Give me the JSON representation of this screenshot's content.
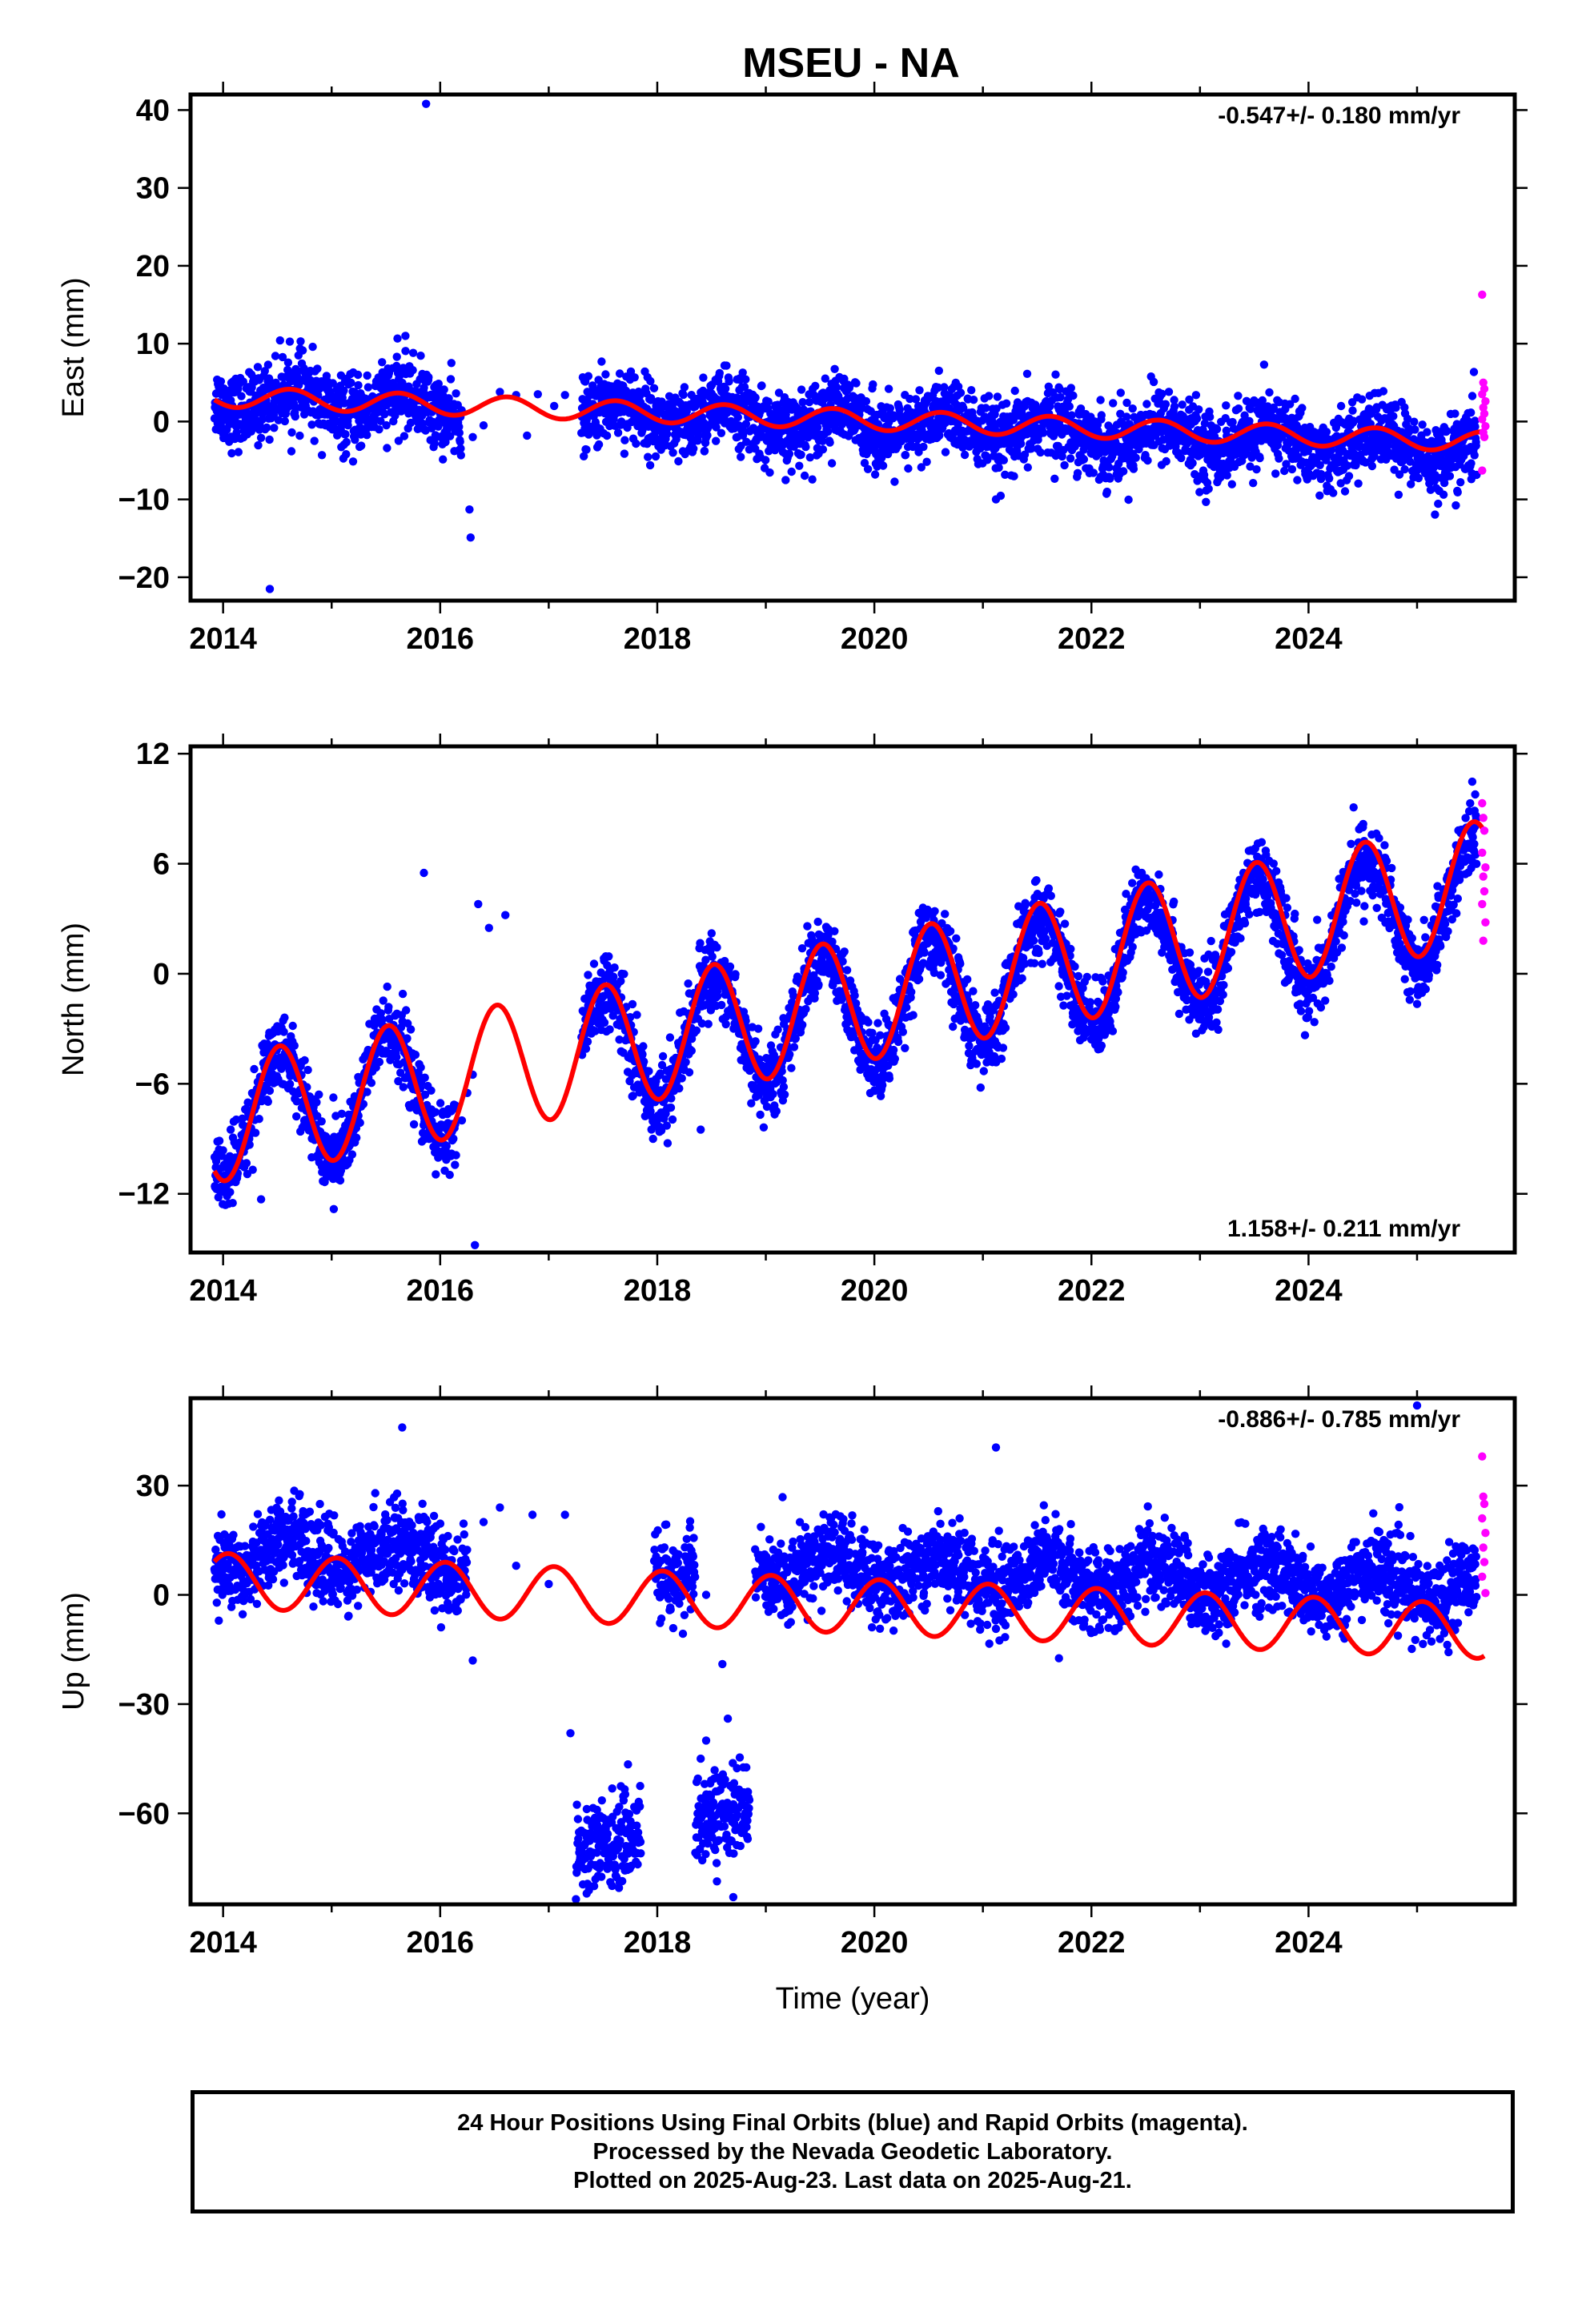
{
  "title": "MSEU - NA",
  "colors": {
    "final_orbits": "#0000ff",
    "rapid_orbits": "#ff00ff",
    "fit": "#ff0000",
    "frame": "#000000"
  },
  "chart_data": [
    {
      "type": "scatter",
      "ylabel": "East (mm)",
      "xlabel": "",
      "rate_label": "-0.547+/- 0.180 mm/yr",
      "rate_position": "top-right",
      "xlim": [
        2013.7,
        2025.9
      ],
      "ylim": [
        -23,
        42
      ],
      "xticks": [
        2014,
        2016,
        2018,
        2020,
        2022,
        2024
      ],
      "yticks": [
        40,
        30,
        20,
        10,
        0,
        -10,
        -20
      ],
      "ytick_labels": [
        "40",
        "30",
        "20",
        "10",
        "0",
        "−10",
        "−20"
      ],
      "series": [
        {
          "role": "final",
          "segments": [
            [
              2013.92,
              2016.2
            ],
            [
              2017.3,
              2025.55
            ]
          ],
          "trend": [
            [
              2013.92,
              3.0
            ],
            [
              2025.6,
              -3.5
            ]
          ],
          "annual_amp": 1.6,
          "annual_peak": 0.65,
          "scatter": 2.3,
          "sparse": [
            [
              2016.05,
              -1.5
            ],
            [
              2016.3,
              -2.0
            ],
            [
              2016.4,
              -0.5
            ],
            [
              2016.55,
              3.8
            ],
            [
              2016.7,
              3.4
            ],
            [
              2016.8,
              -1.8
            ],
            [
              2016.9,
              3.5
            ],
            [
              2017.05,
              2.0
            ],
            [
              2017.15,
              3.4
            ]
          ],
          "outliers": [
            [
              2015.87,
              40.8
            ],
            [
              2014.43,
              -21.5
            ],
            [
              2016.27,
              -11.3
            ],
            [
              2016.28,
              -14.9
            ],
            [
              2015.68,
              11.0
            ],
            [
              2021.12,
              -10.0
            ],
            [
              2024.83,
              -9.4
            ],
            [
              2025.4,
              -7.8
            ],
            [
              2025.5,
              -7.4
            ]
          ]
        },
        {
          "role": "rapid",
          "x_range": [
            2025.58,
            2025.64
          ],
          "points": [
            [
              2025.6,
              16.3
            ],
            [
              2025.61,
              5.0
            ],
            [
              2025.62,
              4.2
            ],
            [
              2025.6,
              3.5
            ],
            [
              2025.63,
              2.6
            ],
            [
              2025.61,
              1.8
            ],
            [
              2025.62,
              1.0
            ],
            [
              2025.6,
              0.3
            ],
            [
              2025.63,
              -0.6
            ],
            [
              2025.61,
              -1.4
            ],
            [
              2025.62,
              -2.0
            ],
            [
              2025.6,
              -6.3
            ]
          ]
        },
        {
          "role": "fit",
          "trend": [
            [
              2013.92,
              3.2
            ],
            [
              2025.62,
              -2.6
            ]
          ],
          "annual_amp": 1.3,
          "annual_peak": 0.62
        }
      ]
    },
    {
      "type": "scatter",
      "ylabel": "North (mm)",
      "xlabel": "",
      "rate_label": "1.158+/- 0.211 mm/yr",
      "rate_position": "bottom-right",
      "xlim": [
        2013.7,
        2025.9
      ],
      "ylim": [
        -15.2,
        12.4
      ],
      "xticks": [
        2014,
        2016,
        2018,
        2020,
        2022,
        2024
      ],
      "yticks": [
        12,
        6,
        0,
        -6,
        -12
      ],
      "ytick_labels": [
        "12",
        "6",
        "0",
        "−6",
        "−12"
      ],
      "series": [
        {
          "role": "final",
          "segments": [
            [
              2013.92,
              2016.15
            ],
            [
              2017.3,
              2025.55
            ]
          ],
          "trend": [
            [
              2013.92,
              -8.0
            ],
            [
              2025.6,
              4.2
            ]
          ],
          "annual_amp": 3.2,
          "annual_peak": 0.52,
          "scatter": 1.0,
          "sparse": [
            [
              2016.25,
              -6.5
            ],
            [
              2016.35,
              3.8
            ],
            [
              2016.45,
              2.5
            ],
            [
              2016.6,
              3.2
            ],
            [
              2016.2,
              -8.0
            ],
            [
              2016.3,
              -5.5
            ]
          ],
          "outliers": [
            [
              2015.85,
              5.5
            ],
            [
              2016.32,
              -14.8
            ],
            [
              2014.35,
              -12.3
            ],
            [
              2015.08,
              -10.5
            ],
            [
              2018.4,
              -8.5
            ],
            [
              2025.0,
              -0.9
            ]
          ]
        },
        {
          "role": "rapid",
          "x_range": [
            2025.58,
            2025.64
          ],
          "points": [
            [
              2025.6,
              9.3
            ],
            [
              2025.61,
              8.5
            ],
            [
              2025.62,
              7.8
            ],
            [
              2025.6,
              6.6
            ],
            [
              2025.63,
              5.8
            ],
            [
              2025.61,
              5.3
            ],
            [
              2025.62,
              4.5
            ],
            [
              2025.6,
              3.8
            ],
            [
              2025.63,
              2.8
            ],
            [
              2025.61,
              1.8
            ]
          ]
        },
        {
          "role": "fit",
          "trend": [
            [
              2013.92,
              -8.0
            ],
            [
              2025.62,
              5.0
            ]
          ],
          "annual_amp": 3.4,
          "annual_peak": 0.52
        }
      ]
    },
    {
      "type": "scatter",
      "ylabel": "Up (mm)",
      "xlabel": "Time (year)",
      "rate_label": "-0.886+/- 0.785 mm/yr",
      "rate_position": "top-right",
      "xlim": [
        2013.7,
        2025.9
      ],
      "ylim": [
        -85,
        54
      ],
      "xticks": [
        2014,
        2016,
        2018,
        2020,
        2022,
        2024
      ],
      "yticks": [
        30,
        0,
        -30,
        -60
      ],
      "ytick_labels": [
        "30",
        "0",
        "−30",
        "−60"
      ],
      "series": [
        {
          "role": "final",
          "segments": [
            [
              2013.92,
              2016.25
            ],
            [
              2017.97,
              2018.35
            ],
            [
              2018.9,
              2025.55
            ]
          ],
          "trend": [
            [
              2013.92,
              12.0
            ],
            [
              2025.6,
              2.0
            ]
          ],
          "annual_amp": 4.5,
          "annual_peak": 0.6,
          "scatter": 5.5,
          "sparse": [
            [
              2016.4,
              20
            ],
            [
              2016.55,
              24
            ],
            [
              2016.7,
              8
            ],
            [
              2016.85,
              22
            ],
            [
              2017.0,
              3
            ],
            [
              2017.15,
              22
            ],
            [
              2016.3,
              -18
            ],
            [
              2018.45,
              0
            ],
            [
              2018.6,
              -19
            ]
          ],
          "outliers": [
            [
              2015.65,
              46.0
            ],
            [
              2025.0,
              52.0
            ],
            [
              2021.12,
              40.5
            ],
            [
              2017.2,
              -38.0
            ]
          ]
        },
        {
          "role": "final_offset",
          "segments": [
            [
              2017.25,
              2017.85
            ],
            [
              2018.35,
              2018.85
            ]
          ],
          "trend": [
            [
              2017.25,
              -70.0
            ],
            [
              2018.85,
              -58.0
            ]
          ],
          "scatter": 6.0,
          "outliers": [
            [
              2018.4,
              -45.0
            ],
            [
              2018.65,
              -34.0
            ],
            [
              2018.45,
              -40.0
            ],
            [
              2018.7,
              -83.0
            ],
            [
              2017.35,
              -82.0
            ]
          ]
        },
        {
          "role": "rapid",
          "x_range": [
            2025.58,
            2025.64
          ],
          "points": [
            [
              2025.6,
              38.0
            ],
            [
              2025.61,
              27.0
            ],
            [
              2025.62,
              25.0
            ],
            [
              2025.6,
              21.0
            ],
            [
              2025.63,
              17.0
            ],
            [
              2025.61,
              13.0
            ],
            [
              2025.62,
              9.0
            ],
            [
              2025.6,
              5.0
            ],
            [
              2025.63,
              0.5
            ]
          ]
        },
        {
          "role": "fit",
          "trend": [
            [
              2013.92,
              4.0
            ],
            [
              2025.62,
              -10.0
            ]
          ],
          "annual_amp": 7.5,
          "annual_peak": 0.05
        }
      ]
    }
  ],
  "footer": {
    "line1": "24 Hour Positions Using Final Orbits (blue) and Rapid Orbits (magenta).",
    "line2": "Processed by the Nevada Geodetic Laboratory.",
    "line3": "Plotted on 2025-Aug-23. Last data on 2025-Aug-21."
  }
}
